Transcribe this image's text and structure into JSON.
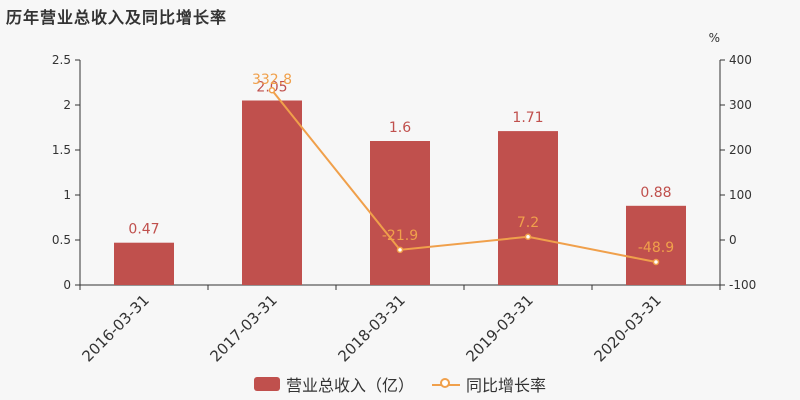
{
  "title": "历年营业总收入及同比增长率",
  "chart_data": {
    "type": "bar",
    "categories": [
      "2016-03-31",
      "2017-03-31",
      "2018-03-31",
      "2019-03-31",
      "2020-03-31"
    ],
    "series": [
      {
        "name": "营业总收入（亿）",
        "type": "bar",
        "axis": "left",
        "values": [
          0.47,
          2.05,
          1.6,
          1.71,
          0.88
        ],
        "labels": [
          "0.47",
          "2.05",
          "1.6",
          "1.71",
          "0.88"
        ],
        "color": "#c0504d"
      },
      {
        "name": "同比增长率",
        "type": "line",
        "axis": "right",
        "values": [
          null,
          332.8,
          -21.9,
          7.2,
          -48.9
        ],
        "labels": [
          "",
          "332.8",
          "-21.9",
          "7.2",
          "-48.9"
        ],
        "color": "#f0a04b"
      }
    ],
    "y_left": {
      "min": 0,
      "max": 2.5,
      "ticks": [
        "0",
        "0.5",
        "1",
        "1.5",
        "2",
        "2.5"
      ]
    },
    "y_right": {
      "min": -100,
      "max": 400,
      "ticks": [
        "-100",
        "0",
        "100",
        "200",
        "300",
        "400"
      ],
      "unit": "%"
    },
    "bar_label_color": "#c0504d",
    "line_label_color": "#f0a04b",
    "legend_position": "bottom-center"
  }
}
